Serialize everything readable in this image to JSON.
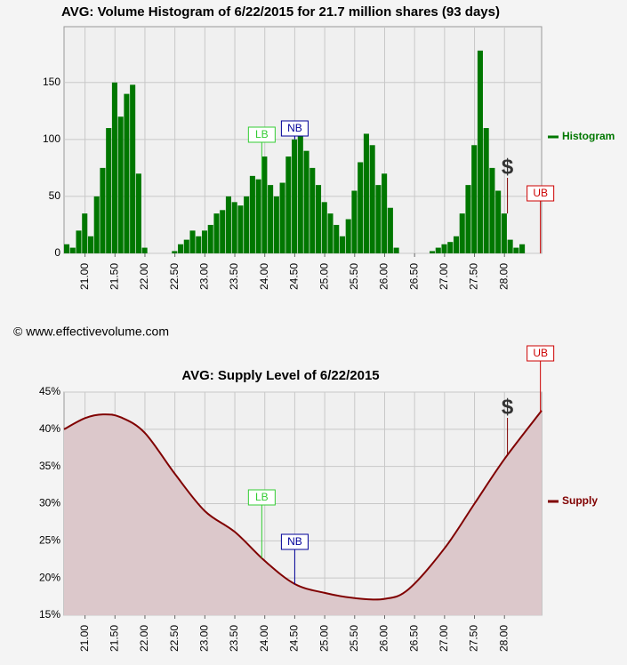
{
  "chart_data": [
    {
      "type": "bar",
      "title": "AVG: Volume Histogram of 6/22/2015 for 21.7 million shares (93 days)",
      "x": [
        20.7,
        20.8,
        20.9,
        21.0,
        21.1,
        21.2,
        21.3,
        21.4,
        21.5,
        21.6,
        21.7,
        21.8,
        21.9,
        22.0,
        22.1,
        22.2,
        22.3,
        22.4,
        22.5,
        22.6,
        22.7,
        22.8,
        22.9,
        23.0,
        23.1,
        23.2,
        23.3,
        23.4,
        23.5,
        23.6,
        23.7,
        23.8,
        23.9,
        24.0,
        24.1,
        24.2,
        24.3,
        24.4,
        24.5,
        24.6,
        24.7,
        24.8,
        24.9,
        25.0,
        25.1,
        25.2,
        25.3,
        25.4,
        25.5,
        25.6,
        25.7,
        25.8,
        25.9,
        26.0,
        26.1,
        26.2,
        26.3,
        26.4,
        26.5,
        26.6,
        26.7,
        26.8,
        26.9,
        27.0,
        27.1,
        27.2,
        27.3,
        27.4,
        27.5,
        27.6,
        27.7,
        27.8,
        27.9,
        28.0,
        28.1,
        28.2,
        28.3,
        28.4,
        28.5,
        28.6
      ],
      "series": [
        {
          "name": "Histogram",
          "color": "#007700",
          "values": [
            8,
            5,
            20,
            35,
            15,
            50,
            75,
            110,
            150,
            120,
            140,
            148,
            70,
            5,
            0,
            0,
            0,
            0,
            2,
            8,
            12,
            20,
            15,
            20,
            25,
            35,
            38,
            50,
            45,
            42,
            50,
            68,
            65,
            85,
            60,
            50,
            62,
            85,
            100,
            115,
            90,
            75,
            60,
            45,
            35,
            25,
            15,
            30,
            55,
            80,
            105,
            95,
            60,
            70,
            40,
            5,
            0,
            0,
            0,
            0,
            0,
            2,
            5,
            8,
            10,
            15,
            35,
            60,
            95,
            178,
            110,
            75,
            55,
            35,
            12,
            5,
            8,
            0,
            0,
            0
          ]
        }
      ],
      "xlim": [
        20.65,
        28.62
      ],
      "xticks": [
        {
          "value": 21,
          "label": "21.00"
        },
        {
          "value": 21.5,
          "label": "21.50"
        },
        {
          "value": 22,
          "label": "22.00"
        },
        {
          "value": 22.5,
          "label": "22.50"
        },
        {
          "value": 23,
          "label": "23.00"
        },
        {
          "value": 23.5,
          "label": "23.50"
        },
        {
          "value": 24,
          "label": "24.00"
        },
        {
          "value": 24.5,
          "label": "24.50"
        },
        {
          "value": 25,
          "label": "25.00"
        },
        {
          "value": 25.5,
          "label": "25.50"
        },
        {
          "value": 26,
          "label": "26.00"
        },
        {
          "value": 26.5,
          "label": "26.50"
        },
        {
          "value": 27,
          "label": "27.00"
        },
        {
          "value": 27.5,
          "label": "27.50"
        },
        {
          "value": 28,
          "label": "28.00"
        }
      ],
      "ylim": [
        0,
        199
      ],
      "yticks": [
        0,
        50,
        100,
        150
      ],
      "grid": true,
      "legend": "right",
      "annotations": [
        {
          "text": "LB",
          "x": 23.95,
          "color": "#33cc33"
        },
        {
          "text": "NB",
          "x": 24.5,
          "color": "#000099"
        },
        {
          "text": "UB",
          "x": 28.6,
          "color": "#cc0000"
        },
        {
          "text": "$",
          "x": 28.05,
          "color": "#333333"
        }
      ]
    },
    {
      "type": "line",
      "title": "AVG: Supply Level of 6/22/2015",
      "x": [
        20.65,
        21.0,
        21.3,
        21.6,
        22.0,
        22.5,
        23.0,
        23.5,
        24.0,
        24.5,
        25.0,
        25.5,
        26.0,
        26.4,
        27.0,
        27.5,
        28.0,
        28.62
      ],
      "series": [
        {
          "name": "Supply",
          "color": "#800000",
          "values": [
            40,
            41.5,
            42,
            41.6,
            39.5,
            34,
            29,
            26.2,
            22.3,
            19.2,
            18,
            17.3,
            17.2,
            18.5,
            24,
            30,
            36,
            42.5
          ]
        }
      ],
      "xlim": [
        20.65,
        28.62
      ],
      "xticks": [
        {
          "value": 21,
          "label": "21.00"
        },
        {
          "value": 21.5,
          "label": "21.50"
        },
        {
          "value": 22,
          "label": "22.00"
        },
        {
          "value": 22.5,
          "label": "22.50"
        },
        {
          "value": 23,
          "label": "23.00"
        },
        {
          "value": 23.5,
          "label": "23.50"
        },
        {
          "value": 24,
          "label": "24.00"
        },
        {
          "value": 24.5,
          "label": "24.50"
        },
        {
          "value": 25,
          "label": "25.00"
        },
        {
          "value": 25.5,
          "label": "25.50"
        },
        {
          "value": 26,
          "label": "26.00"
        },
        {
          "value": 26.5,
          "label": "26.50"
        },
        {
          "value": 27,
          "label": "27.00"
        },
        {
          "value": 27.5,
          "label": "27.50"
        },
        {
          "value": 28,
          "label": "28.00"
        }
      ],
      "ylim": [
        15,
        45
      ],
      "yticks": [
        {
          "value": 15,
          "label": "15%"
        },
        {
          "value": 20,
          "label": "20%"
        },
        {
          "value": 25,
          "label": "25%"
        },
        {
          "value": 30,
          "label": "30%"
        },
        {
          "value": 35,
          "label": "35%"
        },
        {
          "value": 40,
          "label": "40%"
        },
        {
          "value": 45,
          "label": "45%"
        }
      ],
      "grid": true,
      "legend": "right",
      "annotations": [
        {
          "text": "LB",
          "x": 23.95,
          "color": "#33cc33"
        },
        {
          "text": "NB",
          "x": 24.5,
          "color": "#000099"
        },
        {
          "text": "UB",
          "x": 28.6,
          "color": "#cc0000"
        },
        {
          "text": "$",
          "x": 28.05,
          "color": "#333333"
        }
      ]
    }
  ],
  "footer": "© www.effectivevolume.com"
}
